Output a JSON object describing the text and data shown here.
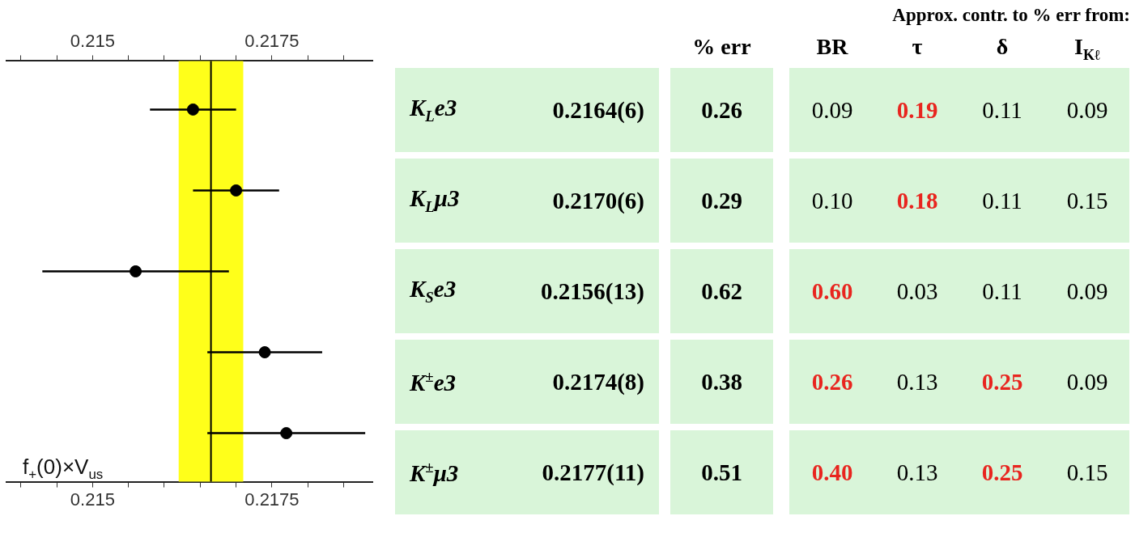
{
  "chart_data": [
    {
      "type": "scatter",
      "orientation": "horizontal",
      "xlabel": "f$_{+}$(0)×V$_{us}$",
      "categories": [
        null,
        null,
        null,
        null,
        null
      ],
      "color": "#000000",
      "values": [
        0.2164,
        0.217,
        0.2156,
        0.2174,
        0.2177
      ],
      "errors": [
        0.0006,
        0.0006,
        0.0013,
        0.0008,
        0.0011
      ],
      "marker": "circle",
      "xlim": [
        0.2138,
        0.2189
      ],
      "xticks": [
        {
          "value": 0.214,
          "label": null
        },
        {
          "value": 0.2145,
          "label": null
        },
        0.215,
        {
          "value": 0.2155,
          "label": null
        },
        {
          "value": 0.216,
          "label": null
        },
        {
          "value": 0.2165,
          "label": null
        },
        {
          "value": 0.217,
          "label": null
        },
        0.2175,
        {
          "value": 0.218,
          "label": null
        },
        {
          "value": 0.2185,
          "label": null
        }
      ],
      "x2lim": [
        0.2138,
        0.2189
      ],
      "x2ticks": [
        {
          "value": 0.214,
          "label": null
        },
        {
          "value": 0.2145,
          "label": null
        },
        0.215,
        {
          "value": 0.2155,
          "label": null
        },
        {
          "value": 0.216,
          "label": null
        },
        {
          "value": 0.2165,
          "label": null
        },
        {
          "value": 0.217,
          "label": null
        },
        0.2175,
        {
          "value": 0.218,
          "label": null
        },
        {
          "value": 0.2185,
          "label": null
        }
      ],
      "ref_lines": [
        {
          "axis": "x",
          "value": 0.21665,
          "color": "#000000"
        }
      ],
      "bands": [
        {
          "axis": "x",
          "from": 0.2162,
          "to": 0.2171,
          "color": "#ffff1a"
        }
      ],
      "legend": false
    },
    {
      "type": "other",
      "subtitle": "Approx. contr. to % err from:",
      "categories": [
        null,
        "% err",
        "BR",
        "τ",
        "δ",
        "I$_{Kℓ}$"
      ],
      "y_categories": [
        "K$_{L}$e3",
        "K$_{L}$μ3",
        "K$_{S}$e3",
        "K$^{±}$e3",
        "K$^{±}$μ3"
      ],
      "cell_labels": [
        [
          "0.2164(6)",
          "0.26",
          "0.09",
          "0.19",
          "0.11",
          "0.09"
        ],
        [
          "0.2170(6)",
          "0.29",
          "0.10",
          "0.18",
          "0.11",
          "0.15"
        ],
        [
          "0.2156(13)",
          "0.62",
          "0.60",
          "0.03",
          "0.11",
          "0.09"
        ],
        [
          "0.2174(8)",
          "0.38",
          "0.26",
          "0.13",
          "0.25",
          "0.09"
        ],
        [
          "0.2177(11)",
          "0.51",
          "0.40",
          "0.13",
          "0.25",
          "0.15"
        ]
      ],
      "colors": [
        [
          "#000000",
          "#000000",
          "#000000",
          "#e8251f",
          "#000000",
          "#000000"
        ],
        [
          "#000000",
          "#000000",
          "#000000",
          "#e8251f",
          "#000000",
          "#000000"
        ],
        [
          "#000000",
          "#000000",
          "#e8251f",
          "#000000",
          "#000000",
          "#000000"
        ],
        [
          "#000000",
          "#000000",
          "#e8251f",
          "#000000",
          "#e8251f",
          "#000000"
        ],
        [
          "#000000",
          "#000000",
          "#e8251f",
          "#000000",
          "#e8251f",
          "#000000"
        ]
      ]
    }
  ]
}
